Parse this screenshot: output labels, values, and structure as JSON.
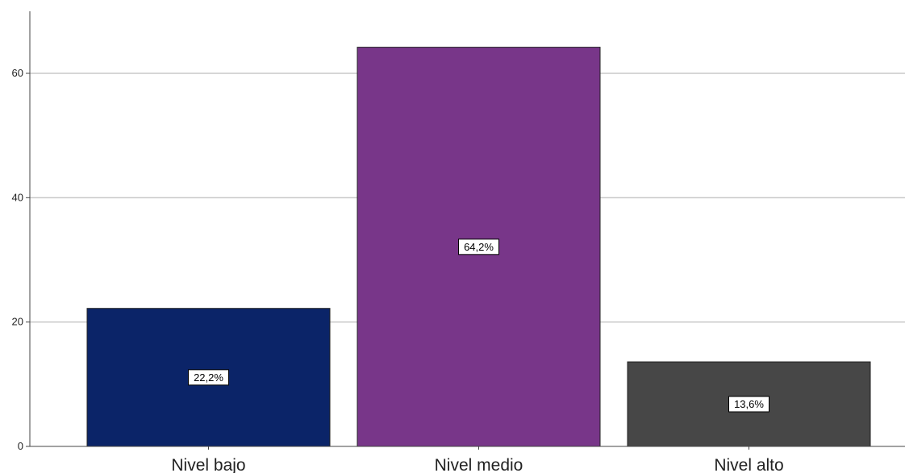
{
  "chart_data": {
    "type": "bar",
    "title": "",
    "xlabel": "",
    "ylabel": "",
    "categories": [
      "Nivel bajo",
      "Nivel medio",
      "Nivel alto"
    ],
    "values": [
      22.2,
      64.2,
      13.6
    ],
    "data_labels": [
      "22,2%",
      "64,2%",
      "13,6%"
    ],
    "colors": [
      "#0b2468",
      "#783689",
      "#474747"
    ],
    "ylim": [
      0,
      70
    ],
    "yticks": [
      0,
      20,
      40,
      60
    ],
    "ytick_labels": [
      "0",
      "20",
      "40",
      "60"
    ],
    "grid": true,
    "gridline_color": "#c8c8c8",
    "legend": "none"
  }
}
